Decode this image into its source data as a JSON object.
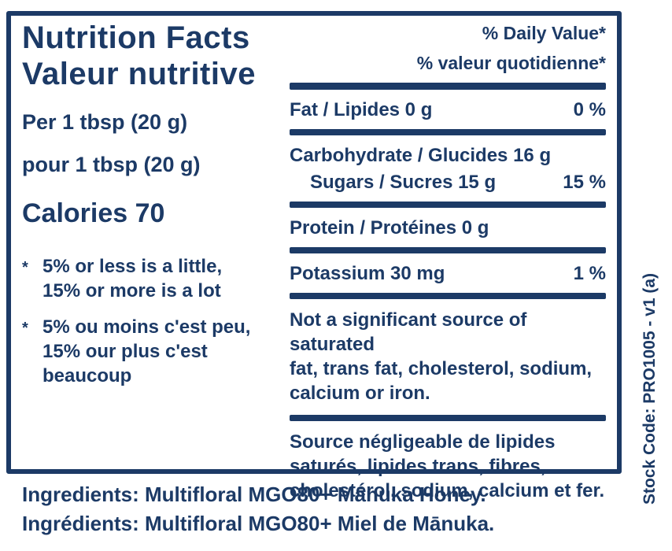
{
  "colors": {
    "ink": "#1c3a66",
    "background": "#ffffff"
  },
  "label": {
    "title_en": "Nutrition Facts",
    "title_fr": "Valeur nutritive",
    "serving_en": "Per 1 tbsp (20 g)",
    "serving_fr": "pour 1 tbsp (20 g)",
    "calories_line": "Calories 70",
    "footnote_marker": "*",
    "footnote_en": "5% or less is a little,\n15% or more is a lot",
    "footnote_fr": "5% ou moins c'est peu,\n15% our plus c'est\nbeaucoup",
    "dv_header_en": "% Daily Value*",
    "dv_header_fr": "% valeur quotidienne*",
    "rows": [
      {
        "name": "Fat / Lipides 0 g",
        "dv": "0 %"
      },
      {
        "name": "Carbohydrate / Glucides 16 g",
        "dv": ""
      },
      {
        "name": "Sugars / Sucres 15 g",
        "dv": "15 %"
      },
      {
        "name": "Protein / Protéines 0 g",
        "dv": ""
      },
      {
        "name": "Potassium 30 mg",
        "dv": "1 %"
      }
    ],
    "not_significant_en": "Not a significant source of saturated\nfat, trans fat, cholesterol, sodium,\ncalcium or iron.",
    "not_significant_fr": "Source négligeable de lipides\nsaturés, lipides trans, fibres,\ncholestérol, sodium, calcium et fer."
  },
  "ingredients": {
    "en": "Ingredients: Multifloral MGO80+ Mānuka Honey.",
    "fr": "Ingrédients: Multifloral MGO80+ Miel de Mānuka."
  },
  "stock_code": "Stock Code: PRO1005 - v1 (a)"
}
